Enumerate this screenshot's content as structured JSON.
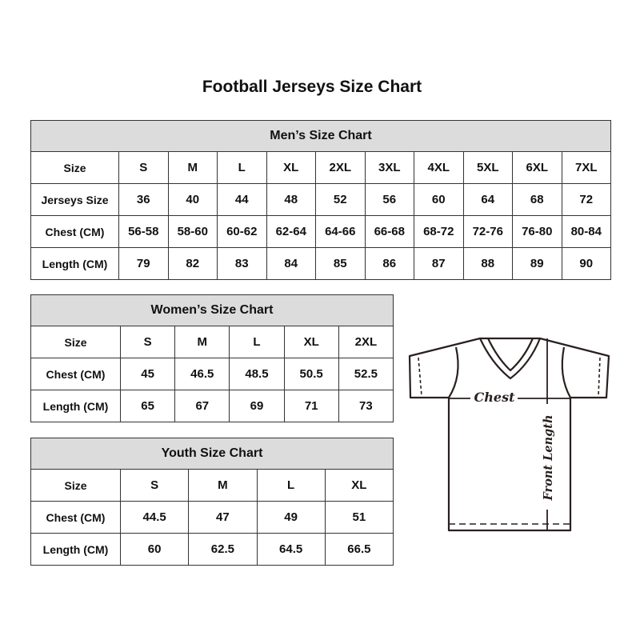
{
  "title": "Football Jerseys Size Chart",
  "men": {
    "heading": "Men’s Size Chart",
    "rows": [
      [
        "Size",
        "S",
        "M",
        "L",
        "XL",
        "2XL",
        "3XL",
        "4XL",
        "5XL",
        "6XL",
        "7XL"
      ],
      [
        "Jerseys Size",
        "36",
        "40",
        "44",
        "48",
        "52",
        "56",
        "60",
        "64",
        "68",
        "72"
      ],
      [
        "Chest (CM)",
        "56-58",
        "58-60",
        "60-62",
        "62-64",
        "64-66",
        "66-68",
        "68-72",
        "72-76",
        "76-80",
        "80-84"
      ],
      [
        "Length (CM)",
        "79",
        "82",
        "83",
        "84",
        "85",
        "86",
        "87",
        "88",
        "89",
        "90"
      ]
    ]
  },
  "women": {
    "heading": "Women’s Size Chart",
    "rows": [
      [
        "Size",
        "S",
        "M",
        "L",
        "XL",
        "2XL"
      ],
      [
        "Chest (CM)",
        "45",
        "46.5",
        "48.5",
        "50.5",
        "52.5"
      ],
      [
        "Length (CM)",
        "65",
        "67",
        "69",
        "71",
        "73"
      ]
    ]
  },
  "youth": {
    "heading": "Youth Size Chart",
    "rows": [
      [
        "Size",
        "S",
        "M",
        "L",
        "XL"
      ],
      [
        "Chest (CM)",
        "44.5",
        "47",
        "49",
        "51"
      ],
      [
        "Length (CM)",
        "60",
        "62.5",
        "64.5",
        "66.5"
      ]
    ]
  },
  "diagram": {
    "chest_label": "Chest",
    "length_label": "Front Length"
  },
  "colors": {
    "header_bg": "#dcdcdc",
    "border": "#333333"
  }
}
